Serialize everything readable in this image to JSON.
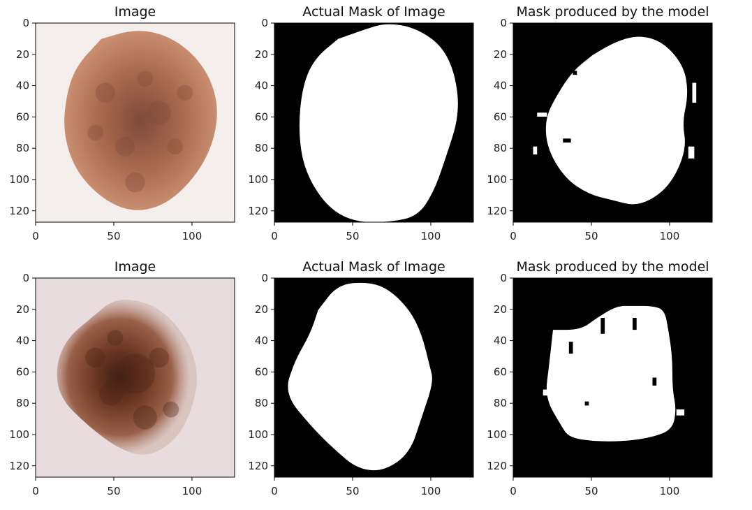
{
  "figure": {
    "rows": [
      {
        "panels": [
          {
            "title": "Image",
            "kind": "image",
            "palette": {
              "background": "#f4eeec",
              "lesion_outer": "#c98d6f",
              "lesion_mid": "#a86a4e",
              "lesion_dark": "#7f4a3a"
            },
            "xticks": [
              "0",
              "50",
              "100"
            ],
            "yticks": [
              "0",
              "20",
              "40",
              "60",
              "80",
              "100",
              "120"
            ]
          },
          {
            "title": "Actual Mask of Image",
            "kind": "mask",
            "palette": {
              "background": "#000000",
              "foreground": "#ffffff"
            },
            "xticks": [
              "0",
              "50",
              "100"
            ],
            "yticks": [
              "0",
              "20",
              "40",
              "60",
              "80",
              "100",
              "120"
            ]
          },
          {
            "title": "Mask produced by the model",
            "kind": "mask",
            "palette": {
              "background": "#000000",
              "foreground": "#ffffff"
            },
            "xticks": [
              "0",
              "50",
              "100"
            ],
            "yticks": [
              "0",
              "20",
              "40",
              "60",
              "80",
              "100",
              "120"
            ]
          }
        ]
      },
      {
        "panels": [
          {
            "title": "Image",
            "kind": "image",
            "palette": {
              "background": "#e8dcde",
              "lesion_outer": "#b98a72",
              "lesion_mid": "#8b5137",
              "lesion_dark": "#4a2418"
            },
            "xticks": [
              "0",
              "50",
              "100"
            ],
            "yticks": [
              "0",
              "20",
              "40",
              "60",
              "80",
              "100",
              "120"
            ]
          },
          {
            "title": "Actual Mask of Image",
            "kind": "mask",
            "palette": {
              "background": "#000000",
              "foreground": "#ffffff"
            },
            "xticks": [
              "0",
              "50",
              "100"
            ],
            "yticks": [
              "0",
              "20",
              "40",
              "60",
              "80",
              "100",
              "120"
            ]
          },
          {
            "title": "Mask produced by the model",
            "kind": "mask",
            "palette": {
              "background": "#000000",
              "foreground": "#ffffff"
            },
            "xticks": [
              "0",
              "50",
              "100"
            ],
            "yticks": [
              "0",
              "20",
              "40",
              "60",
              "80",
              "100",
              "120"
            ]
          }
        ]
      }
    ]
  }
}
